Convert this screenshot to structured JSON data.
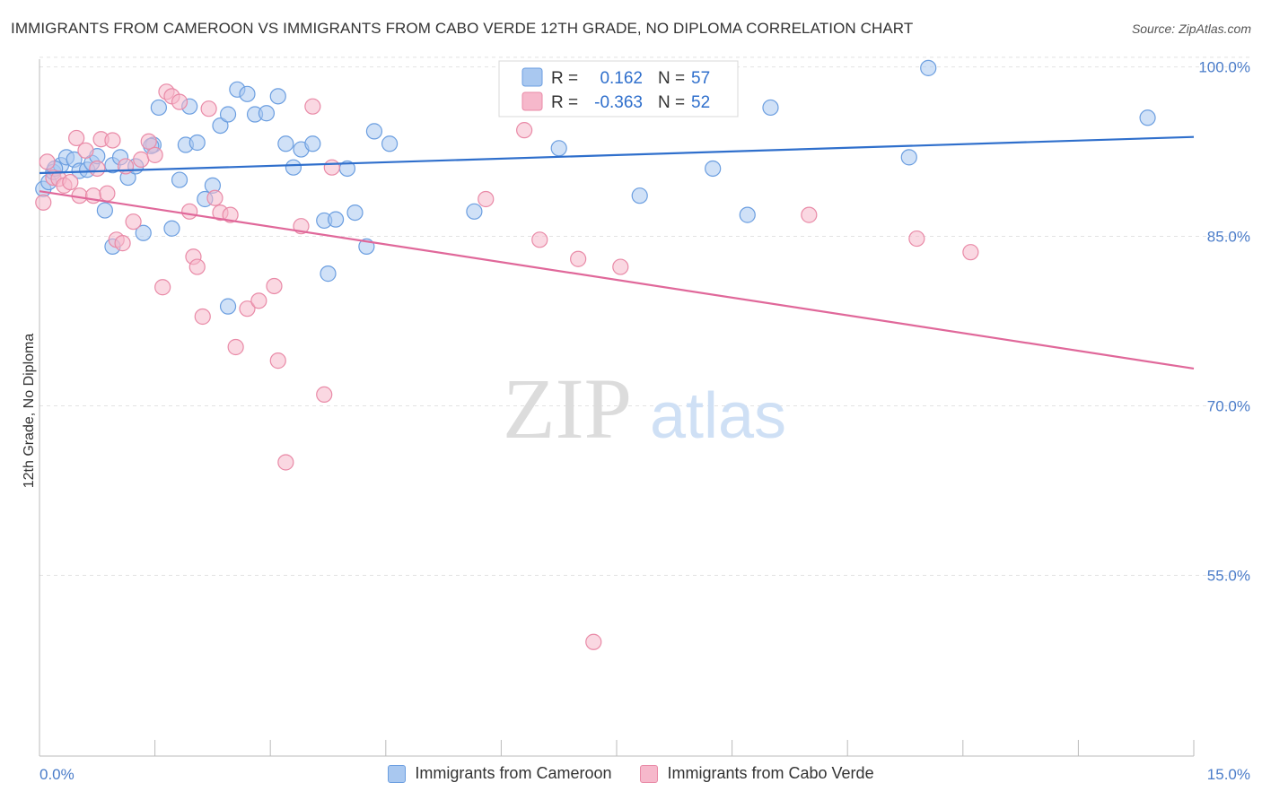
{
  "header": {
    "title": "IMMIGRANTS FROM CAMEROON VS IMMIGRANTS FROM CABO VERDE 12TH GRADE, NO DIPLOMA CORRELATION CHART",
    "source": "Source: ZipAtlas.com"
  },
  "watermark": {
    "zip": "ZIP",
    "atlas": "atlas"
  },
  "colors": {
    "blue_fill": "#a9c8f0",
    "blue_stroke": "#6b9ee0",
    "blue_line": "#2f6fcc",
    "pink_fill": "#f6b8cb",
    "pink_stroke": "#e98aa7",
    "pink_line": "#e0689a",
    "tick_text": "#4a7cc9"
  },
  "legend_top": {
    "blue": {
      "r_label": "R =",
      "r_value": "0.162",
      "n_label": "N =",
      "n_value": "57"
    },
    "pink": {
      "r_label": "R =",
      "r_value": "-0.363",
      "n_label": "N =",
      "n_value": "52"
    }
  },
  "chart_data": {
    "type": "scatter",
    "title": "IMMIGRANTS FROM CAMEROON VS IMMIGRANTS FROM CABO VERDE 12TH GRADE, NO DIPLOMA CORRELATION CHART",
    "xlabel": "",
    "ylabel": "12th Grade, No Diploma",
    "xlim": [
      0,
      15
    ],
    "ylim": [
      39,
      101
    ],
    "x_tick_labels": [
      "0.0%",
      "15.0%"
    ],
    "y_ticks": [
      100,
      85,
      70,
      55
    ],
    "y_tick_labels": [
      "100.0%",
      "85.0%",
      "70.0%",
      "55.0%"
    ],
    "grid": true,
    "legend_position": "top-center",
    "series": [
      {
        "name": "Immigrants from Cameroon",
        "color": "#a9c8f0",
        "trend": {
          "x": [
            0,
            15
          ],
          "y": [
            90.6,
            93.8
          ]
        },
        "points": [
          [
            0.05,
            89.2
          ],
          [
            0.12,
            89.8
          ],
          [
            0.18,
            90.7
          ],
          [
            0.28,
            91.3
          ],
          [
            0.35,
            92.0
          ],
          [
            0.45,
            91.8
          ],
          [
            0.52,
            90.8
          ],
          [
            0.62,
            90.9
          ],
          [
            0.68,
            91.5
          ],
          [
            0.75,
            92.1
          ],
          [
            0.85,
            87.3
          ],
          [
            0.95,
            91.3
          ],
          [
            1.05,
            92.0
          ],
          [
            1.15,
            90.2
          ],
          [
            1.25,
            91.2
          ],
          [
            1.35,
            85.3
          ],
          [
            1.48,
            93.1
          ],
          [
            1.55,
            96.4
          ],
          [
            1.72,
            85.7
          ],
          [
            1.82,
            90.0
          ],
          [
            1.9,
            93.1
          ],
          [
            1.95,
            96.5
          ],
          [
            2.05,
            93.3
          ],
          [
            2.15,
            88.3
          ],
          [
            2.25,
            89.5
          ],
          [
            2.35,
            94.8
          ],
          [
            2.45,
            95.8
          ],
          [
            2.57,
            98.0
          ],
          [
            2.7,
            97.6
          ],
          [
            2.8,
            95.8
          ],
          [
            2.95,
            95.9
          ],
          [
            3.1,
            97.4
          ],
          [
            3.2,
            93.2
          ],
          [
            3.3,
            91.1
          ],
          [
            3.4,
            92.7
          ],
          [
            3.55,
            93.2
          ],
          [
            3.7,
            86.4
          ],
          [
            3.75,
            81.7
          ],
          [
            3.85,
            86.5
          ],
          [
            4.0,
            91.0
          ],
          [
            4.1,
            87.1
          ],
          [
            4.25,
            84.1
          ],
          [
            4.35,
            94.3
          ],
          [
            4.55,
            93.2
          ],
          [
            5.65,
            87.2
          ],
          [
            6.75,
            92.8
          ],
          [
            7.8,
            88.6
          ],
          [
            8.75,
            91.0
          ],
          [
            9.2,
            86.9
          ],
          [
            9.5,
            96.4
          ],
          [
            11.3,
            92.0
          ],
          [
            11.55,
            99.9
          ],
          [
            14.4,
            95.5
          ],
          [
            0.95,
            84.1
          ],
          [
            2.45,
            78.8
          ],
          [
            0.2,
            91.0
          ],
          [
            1.45,
            93.0
          ]
        ]
      },
      {
        "name": "Immigrants from Cabo Verde",
        "color": "#f6b8cb",
        "trend": {
          "x": [
            0,
            15
          ],
          "y": [
            89.0,
            73.3
          ]
        },
        "points": [
          [
            0.05,
            88.0
          ],
          [
            0.1,
            91.6
          ],
          [
            0.18,
            90.2
          ],
          [
            0.25,
            90.1
          ],
          [
            0.32,
            89.5
          ],
          [
            0.4,
            89.8
          ],
          [
            0.48,
            93.7
          ],
          [
            0.52,
            88.6
          ],
          [
            0.6,
            92.6
          ],
          [
            0.7,
            88.6
          ],
          [
            0.75,
            91.0
          ],
          [
            0.8,
            93.6
          ],
          [
            0.88,
            88.8
          ],
          [
            0.95,
            93.5
          ],
          [
            1.0,
            84.7
          ],
          [
            1.08,
            84.4
          ],
          [
            1.12,
            91.2
          ],
          [
            1.22,
            86.3
          ],
          [
            1.32,
            91.8
          ],
          [
            1.42,
            93.4
          ],
          [
            1.5,
            92.2
          ],
          [
            1.6,
            80.5
          ],
          [
            1.65,
            97.8
          ],
          [
            1.72,
            97.4
          ],
          [
            1.82,
            96.9
          ],
          [
            1.95,
            87.2
          ],
          [
            2.0,
            83.2
          ],
          [
            2.05,
            82.3
          ],
          [
            2.12,
            77.9
          ],
          [
            2.2,
            96.3
          ],
          [
            2.28,
            88.4
          ],
          [
            2.35,
            87.1
          ],
          [
            2.48,
            86.9
          ],
          [
            2.55,
            75.2
          ],
          [
            2.7,
            78.6
          ],
          [
            2.85,
            79.3
          ],
          [
            3.05,
            80.6
          ],
          [
            3.1,
            74.0
          ],
          [
            3.2,
            65.0
          ],
          [
            3.4,
            85.9
          ],
          [
            3.55,
            96.5
          ],
          [
            3.7,
            71.0
          ],
          [
            3.8,
            91.1
          ],
          [
            5.8,
            88.3
          ],
          [
            6.3,
            94.4
          ],
          [
            6.5,
            84.7
          ],
          [
            7.0,
            83.0
          ],
          [
            7.55,
            82.3
          ],
          [
            10.0,
            86.9
          ],
          [
            11.4,
            84.8
          ],
          [
            12.1,
            83.6
          ],
          [
            7.2,
            49.1
          ]
        ]
      }
    ]
  },
  "axes": {
    "ylabel": "12th Grade, No Diploma",
    "x_left": "0.0%",
    "x_right": "15.0%"
  },
  "legend_bottom": {
    "blue": "Immigrants from Cameroon",
    "pink": "Immigrants from Cabo Verde"
  }
}
